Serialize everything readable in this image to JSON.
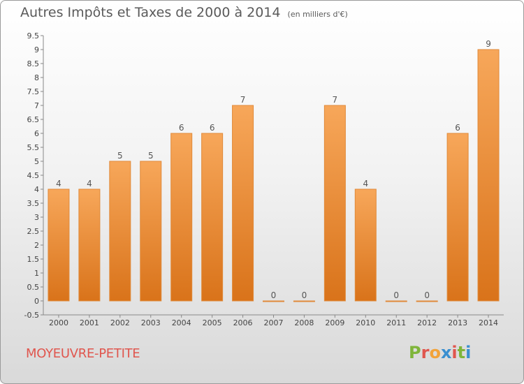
{
  "header": {
    "title": "Autres Impôts et Taxes de 2000 à 2014",
    "subtitle": "(en milliers d'€)"
  },
  "footer": {
    "commune": "MOYEUVRE-PETITE",
    "logo_text": "Proxiti"
  },
  "colors": {
    "bar_top": "#f7a75a",
    "bar_bottom": "#d9731a",
    "axis_text": "#444444",
    "commune": "#e0564e",
    "logo": [
      "#7fb53a",
      "#e0564e",
      "#f2a33a",
      "#3a8fd0",
      "#e0564e",
      "#7fb53a",
      "#3a8fd0"
    ]
  },
  "chart_data": {
    "type": "bar",
    "title": "Autres Impôts et Taxes de 2000 à 2014",
    "subtitle": "(en milliers d'€)",
    "xlabel": "",
    "ylabel": "",
    "categories": [
      "2000",
      "2001",
      "2002",
      "2003",
      "2004",
      "2005",
      "2006",
      "2007",
      "2008",
      "2009",
      "2010",
      "2011",
      "2012",
      "2013",
      "2014"
    ],
    "values": [
      4,
      4,
      5,
      5,
      6,
      6,
      7,
      0,
      0,
      7,
      4,
      0,
      0,
      6,
      9
    ],
    "data_labels": [
      "4",
      "4",
      "5",
      "5",
      "6",
      "6",
      "7",
      "0",
      "0",
      "7",
      "4",
      "0",
      "0",
      "6",
      "9"
    ],
    "ylim": [
      -0.5,
      9.5
    ],
    "yticks": [
      -0.5,
      0,
      0.5,
      1,
      1.5,
      2,
      2.5,
      3,
      3.5,
      4,
      4.5,
      5,
      5.5,
      6,
      6.5,
      7,
      7.5,
      8,
      8.5,
      9,
      9.5
    ],
    "ytick_labels": [
      "-0.5",
      "0",
      "0.5",
      "1",
      "1.5",
      "2",
      "2.5",
      "3",
      "3.5",
      "4",
      "4.5",
      "5",
      "5.5",
      "6",
      "6.5",
      "7",
      "7.5",
      "8",
      "8.5",
      "9",
      "9.5"
    ],
    "grid": false,
    "legend": "none"
  }
}
